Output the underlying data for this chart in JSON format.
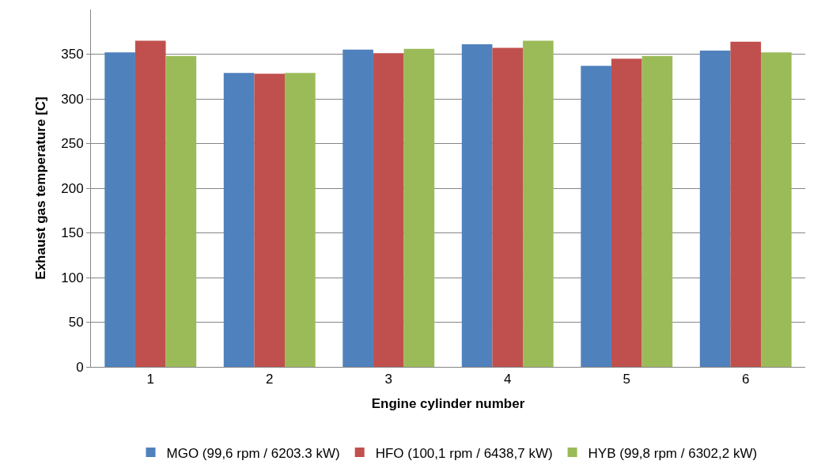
{
  "chart_data": {
    "type": "bar",
    "xlabel": "Engine cylinder number",
    "ylabel": "Exhaust gas temperature [C]",
    "categories": [
      "1",
      "2",
      "3",
      "4",
      "5",
      "6"
    ],
    "series": [
      {
        "name": "MGO (99,6 rpm / 6203.3 kW)",
        "color": "#4f81bd",
        "values": [
          352,
          329,
          355,
          361,
          337,
          354
        ]
      },
      {
        "name": "HFO (100,1 rpm / 6438,7 kW)",
        "color": "#c0504d",
        "values": [
          365,
          328,
          351,
          357,
          345,
          364
        ]
      },
      {
        "name": "HYB (99,8 rpm / 6302,2 kW)",
        "color": "#9bbb59",
        "values": [
          348,
          329,
          356,
          365,
          348,
          352
        ]
      }
    ],
    "ylim": [
      0,
      400
    ],
    "yticks": [
      0,
      50,
      100,
      150,
      200,
      250,
      300,
      350
    ],
    "grid": "y",
    "legend": "bottom"
  }
}
